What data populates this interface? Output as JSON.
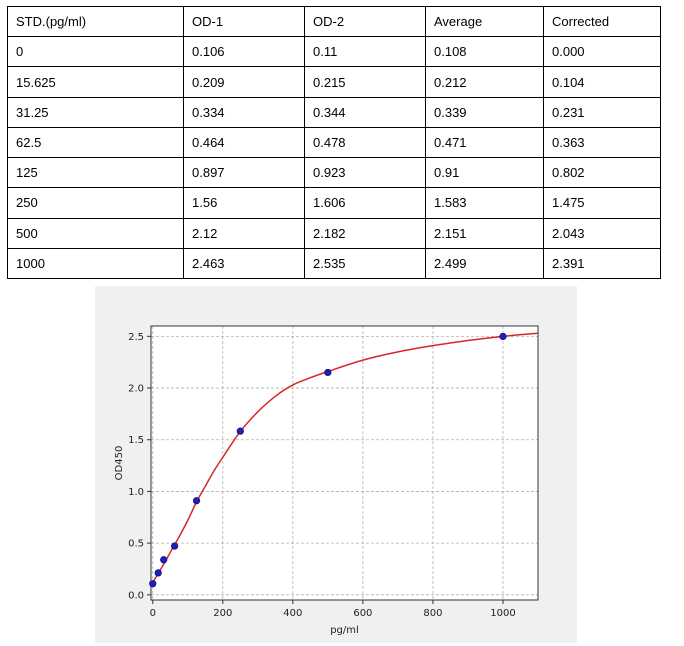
{
  "table": {
    "headers": [
      "STD.(pg/ml)",
      "OD-1",
      "OD-2",
      "Average",
      "Corrected"
    ],
    "rows": [
      [
        "0",
        "0.106",
        "0.11",
        "0.108",
        "0.000"
      ],
      [
        "15.625",
        "0.209",
        "0.215",
        "0.212",
        "0.104"
      ],
      [
        "31.25",
        "0.334",
        "0.344",
        "0.339",
        "0.231"
      ],
      [
        "62.5",
        "0.464",
        "0.478",
        "0.471",
        "0.363"
      ],
      [
        "125",
        "0.897",
        "0.923",
        "0.91",
        "0.802"
      ],
      [
        "250",
        "1.56",
        "1.606",
        "1.583",
        "1.475"
      ],
      [
        "500",
        "2.12",
        "2.182",
        "2.151",
        "2.043"
      ],
      [
        "1000",
        "2.463",
        "2.535",
        "2.499",
        "2.391"
      ]
    ]
  },
  "chart_data": {
    "type": "scatter",
    "xlabel": "pg/ml",
    "ylabel": "OD450",
    "xlim": [
      -5,
      1100
    ],
    "ylim": [
      -0.05,
      2.6
    ],
    "xticks": [
      0,
      200,
      400,
      600,
      800,
      1000
    ],
    "yticks": [
      0.0,
      0.5,
      1.0,
      1.5,
      2.0,
      2.5
    ],
    "xtick_labels": [
      "0",
      "200",
      "400",
      "600",
      "800",
      "1000"
    ],
    "ytick_labels": [
      "0.0",
      "0.5",
      "1.0",
      "1.5",
      "2.0",
      "2.5"
    ],
    "grid": true,
    "points": {
      "x": [
        0,
        15.625,
        31.25,
        62.5,
        125,
        250,
        500,
        1000
      ],
      "y": [
        0.108,
        0.212,
        0.339,
        0.471,
        0.91,
        1.583,
        2.151,
        2.499
      ],
      "color": "#1f1fb4"
    },
    "fit_curve": {
      "color": "#d62728",
      "x": [
        0,
        25,
        50,
        75,
        100,
        125,
        150,
        175,
        200,
        250,
        300,
        350,
        400,
        450,
        500,
        600,
        700,
        800,
        900,
        1000,
        1100
      ],
      "y": [
        0.12,
        0.26,
        0.41,
        0.56,
        0.72,
        0.9,
        1.05,
        1.2,
        1.33,
        1.58,
        1.77,
        1.92,
        2.03,
        2.1,
        2.16,
        2.27,
        2.35,
        2.41,
        2.46,
        2.5,
        2.53
      ]
    }
  }
}
